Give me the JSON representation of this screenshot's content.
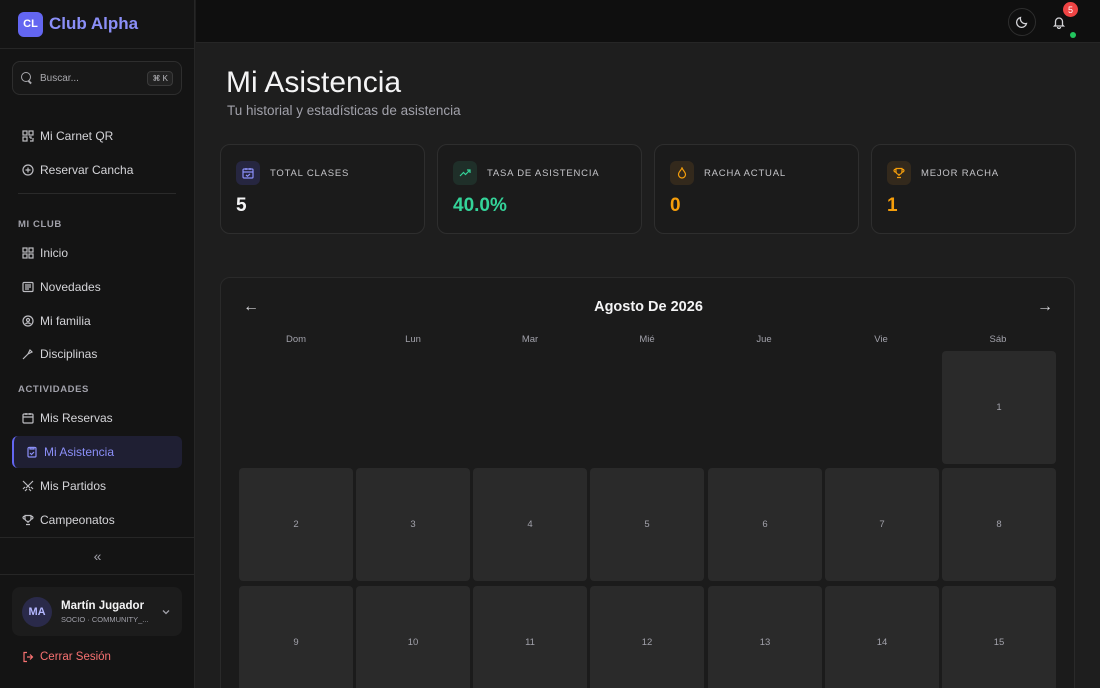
{
  "brand": {
    "logo": "CL",
    "name": "Club Alpha"
  },
  "search": {
    "placeholder": "Buscar...",
    "shortcut": "⌘ K"
  },
  "nav": {
    "top_items": [
      {
        "label": "Mi Carnet QR",
        "icon": "qr-code-icon"
      },
      {
        "label": "Reservar Cancha",
        "icon": "plus-circle-icon"
      }
    ],
    "sections": [
      {
        "label": "MI CLUB",
        "items": [
          {
            "label": "Inicio",
            "icon": "grid-icon"
          },
          {
            "label": "Novedades",
            "icon": "newspaper-icon"
          },
          {
            "label": "Mi familia",
            "icon": "family-icon"
          },
          {
            "label": "Disciplinas",
            "icon": "disciplines-icon"
          }
        ]
      },
      {
        "label": "ACTIVIDADES",
        "items": [
          {
            "label": "Mis Reservas",
            "icon": "calendar-icon"
          },
          {
            "label": "Mi Asistencia",
            "icon": "clipboard-check-icon",
            "active": true
          },
          {
            "label": "Mis Partidos",
            "icon": "swords-icon"
          },
          {
            "label": "Campeonatos",
            "icon": "trophy-icon"
          }
        ]
      }
    ]
  },
  "user": {
    "initials": "MA",
    "name": "Martín Jugador",
    "role": "SOCIO · COMMUNITY_..."
  },
  "logout_label": "Cerrar Sesión",
  "notifications": {
    "count": "5"
  },
  "page": {
    "title": "Mi Asistencia",
    "subtitle": "Tu historial y estadísticas de asistencia"
  },
  "stats": [
    {
      "label": "TOTAL CLASES",
      "value": "5",
      "color": "#f4f4f5",
      "icon": "calendar-check-icon"
    },
    {
      "label": "TASA DE ASISTENCIA",
      "value": "40.0%",
      "color": "#34d399",
      "icon": "trending-up-icon"
    },
    {
      "label": "RACHA ACTUAL",
      "value": "0",
      "color": "#f59e0b",
      "icon": "flame-icon"
    },
    {
      "label": "MEJOR RACHA",
      "value": "1",
      "color": "#f59e0b",
      "icon": "trophy-icon"
    }
  ],
  "calendar": {
    "title": "Agosto De 2026",
    "prev": "←",
    "next": "→",
    "weekdays": [
      "Dom",
      "Lun",
      "Mar",
      "Mié",
      "Jue",
      "Vie",
      "Sáb"
    ],
    "days": [
      "1",
      "2",
      "3",
      "4",
      "5",
      "6",
      "7",
      "8",
      "9",
      "10",
      "11",
      "12",
      "13",
      "14",
      "15"
    ]
  },
  "colors": {
    "accent": "#6366f1",
    "success": "#34d399",
    "warning": "#f59e0b",
    "danger": "#ef4444"
  }
}
